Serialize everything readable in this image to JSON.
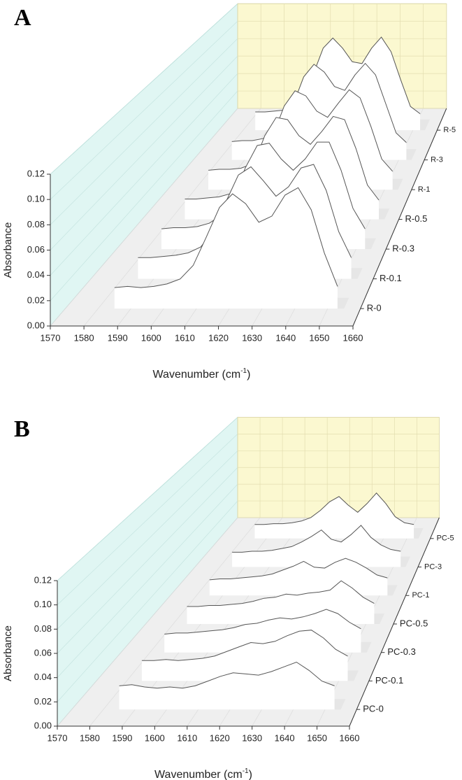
{
  "chart_data": [
    {
      "type": "waterfall",
      "panel": "A",
      "y_label": "Absorbance",
      "x_label": {
        "start": "Wavenumber (cm",
        "sup": "-1",
        "end": ")"
      },
      "xlim": [
        1570,
        1660
      ],
      "xticks": [
        1570,
        1580,
        1590,
        1600,
        1610,
        1620,
        1630,
        1640,
        1650,
        1660
      ],
      "ylim": [
        0,
        0.12
      ],
      "yticks": [
        {
          "value": 0,
          "label": "0.00"
        },
        0.02,
        0.04,
        0.06,
        0.08,
        {
          "value": 0.1,
          "label": "0.10"
        },
        0.12
      ],
      "left_wall_color": "#e0f6f3",
      "back_wall_color": "#fbf8d0",
      "floor_color": "#efefef",
      "grid": true,
      "x": [
        1585,
        1589,
        1593,
        1597,
        1601,
        1605,
        1609,
        1613,
        1617,
        1621,
        1625,
        1629,
        1633,
        1637,
        1641,
        1645,
        1649,
        1653
      ],
      "series": [
        {
          "name": "R-0",
          "color": "#555555",
          "values": [
            0.017,
            0.018,
            0.017,
            0.018,
            0.02,
            0.024,
            0.035,
            0.058,
            0.082,
            0.093,
            0.085,
            0.07,
            0.075,
            0.092,
            0.098,
            0.08,
            0.045,
            0.018
          ]
        },
        {
          "name": "R-0.1",
          "color": "#555555",
          "values": [
            0.018,
            0.018,
            0.019,
            0.02,
            0.022,
            0.027,
            0.04,
            0.065,
            0.088,
            0.095,
            0.083,
            0.07,
            0.078,
            0.094,
            0.097,
            0.075,
            0.04,
            0.018
          ]
        },
        {
          "name": "R-0.3",
          "color": "#555555",
          "values": [
            0.018,
            0.019,
            0.019,
            0.02,
            0.023,
            0.03,
            0.045,
            0.072,
            0.092,
            0.094,
            0.08,
            0.07,
            0.08,
            0.095,
            0.095,
            0.07,
            0.036,
            0.018
          ]
        },
        {
          "name": "R-0.5",
          "color": "#555555",
          "values": [
            0.019,
            0.019,
            0.02,
            0.021,
            0.024,
            0.032,
            0.05,
            0.078,
            0.095,
            0.093,
            0.078,
            0.07,
            0.082,
            0.096,
            0.093,
            0.066,
            0.032,
            0.018
          ]
        },
        {
          "name": "R-1",
          "color": "#555555",
          "values": [
            0.019,
            0.02,
            0.02,
            0.021,
            0.025,
            0.034,
            0.054,
            0.082,
            0.097,
            0.092,
            0.077,
            0.071,
            0.085,
            0.098,
            0.09,
            0.062,
            0.03,
            0.018
          ]
        },
        {
          "name": "R-3",
          "color": "#555555",
          "values": [
            0.019,
            0.02,
            0.02,
            0.022,
            0.026,
            0.036,
            0.058,
            0.086,
            0.099,
            0.091,
            0.076,
            0.072,
            0.088,
            0.1,
            0.088,
            0.058,
            0.028,
            0.018
          ]
        },
        {
          "name": "R-5",
          "color": "#555555",
          "values": [
            0.02,
            0.02,
            0.021,
            0.022,
            0.027,
            0.038,
            0.062,
            0.09,
            0.101,
            0.09,
            0.075,
            0.073,
            0.09,
            0.102,
            0.086,
            0.055,
            0.026,
            0.018
          ]
        }
      ]
    },
    {
      "type": "waterfall",
      "panel": "B",
      "y_label": "Absorbance",
      "x_label": {
        "start": "Wavenumber (cm",
        "sup": "-1",
        "end": ")"
      },
      "xlim": [
        1570,
        1660
      ],
      "xticks": [
        1570,
        1580,
        1590,
        1600,
        1610,
        1620,
        1630,
        1640,
        1650,
        1660
      ],
      "ylim": [
        0,
        0.12
      ],
      "yticks": [
        {
          "value": 0,
          "label": "0.00"
        },
        0.02,
        0.04,
        0.06,
        0.08,
        {
          "value": 0.1,
          "label": "0.10"
        },
        0.12
      ],
      "left_wall_color": "#e0f6f3",
      "back_wall_color": "#fbf8d0",
      "floor_color": "#efefef",
      "grid": true,
      "x": [
        1585,
        1589,
        1593,
        1597,
        1601,
        1605,
        1609,
        1613,
        1617,
        1621,
        1625,
        1629,
        1633,
        1637,
        1641,
        1645,
        1649,
        1653
      ],
      "series": [
        {
          "name": "PC-0",
          "color": "#555555",
          "values": [
            0.02,
            0.021,
            0.019,
            0.018,
            0.019,
            0.018,
            0.02,
            0.024,
            0.028,
            0.031,
            0.03,
            0.029,
            0.032,
            0.036,
            0.04,
            0.033,
            0.024,
            0.02
          ]
        },
        {
          "name": "PC-0.1",
          "color": "#555555",
          "values": [
            0.018,
            0.018,
            0.019,
            0.018,
            0.019,
            0.02,
            0.022,
            0.026,
            0.03,
            0.034,
            0.033,
            0.035,
            0.04,
            0.044,
            0.045,
            0.038,
            0.028,
            0.022
          ]
        },
        {
          "name": "PC-0.3",
          "color": "#555555",
          "values": [
            0.017,
            0.018,
            0.018,
            0.019,
            0.02,
            0.021,
            0.023,
            0.026,
            0.027,
            0.03,
            0.032,
            0.031,
            0.033,
            0.036,
            0.04,
            0.036,
            0.028,
            0.022
          ]
        },
        {
          "name": "PC-0.5",
          "color": "#555555",
          "values": [
            0.017,
            0.017,
            0.018,
            0.018,
            0.019,
            0.02,
            0.022,
            0.025,
            0.026,
            0.029,
            0.028,
            0.03,
            0.031,
            0.033,
            0.042,
            0.035,
            0.026,
            0.02
          ]
        },
        {
          "name": "PC-1",
          "color": "#555555",
          "values": [
            0.016,
            0.017,
            0.017,
            0.018,
            0.019,
            0.02,
            0.022,
            0.026,
            0.03,
            0.035,
            0.029,
            0.028,
            0.034,
            0.038,
            0.034,
            0.028,
            0.021,
            0.018
          ]
        },
        {
          "name": "PC-3",
          "color": "#555555",
          "values": [
            0.016,
            0.016,
            0.017,
            0.017,
            0.018,
            0.02,
            0.022,
            0.027,
            0.033,
            0.04,
            0.03,
            0.027,
            0.035,
            0.045,
            0.032,
            0.024,
            0.019,
            0.017
          ]
        },
        {
          "name": "PC-5",
          "color": "#555555",
          "values": [
            0.016,
            0.016,
            0.017,
            0.017,
            0.018,
            0.02,
            0.024,
            0.032,
            0.042,
            0.048,
            0.038,
            0.03,
            0.04,
            0.052,
            0.04,
            0.025,
            0.018,
            0.016
          ]
        }
      ]
    }
  ]
}
